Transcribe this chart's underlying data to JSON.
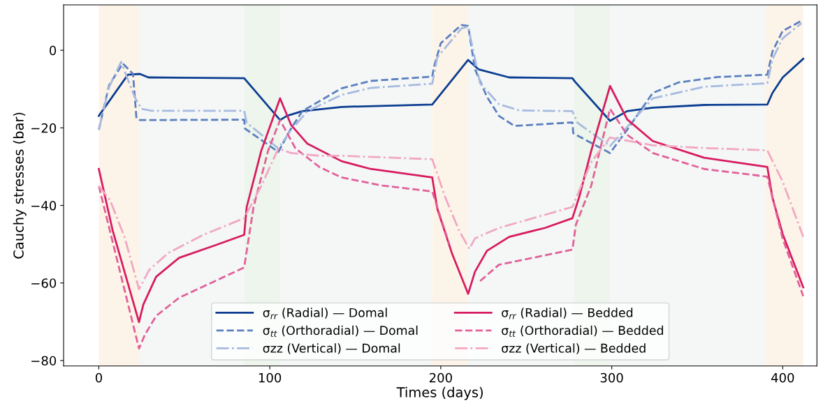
{
  "chart_data": {
    "type": "line",
    "xlabel": "Times (days)",
    "ylabel": "Cauchy stresses (bar)",
    "xlim": [
      -20.6,
      420
    ],
    "ylim": [
      -81.4,
      11.7
    ],
    "xticks": [
      0,
      100,
      200,
      300,
      400
    ],
    "yticks": [
      -80,
      -60,
      -40,
      -20,
      0
    ],
    "grid": false,
    "legend": "bottom",
    "marker": "none",
    "bands": [
      {
        "axis": "x",
        "from": 0,
        "to": 24,
        "color": "#fdf4e9"
      },
      {
        "axis": "x",
        "from": 24,
        "to": 85,
        "color": "#f4f7f6"
      },
      {
        "axis": "x",
        "from": 85,
        "to": 106,
        "color": "#edf5ec"
      },
      {
        "axis": "x",
        "from": 106,
        "to": 195,
        "color": "#f4f7f6"
      },
      {
        "axis": "x",
        "from": 195,
        "to": 216,
        "color": "#fdf4e9"
      },
      {
        "axis": "x",
        "from": 216,
        "to": 278,
        "color": "#f4f7f6"
      },
      {
        "axis": "x",
        "from": 278,
        "to": 299,
        "color": "#edf5ec"
      },
      {
        "axis": "x",
        "from": 299,
        "to": 390,
        "color": "#f4f7f6"
      },
      {
        "axis": "x",
        "from": 390,
        "to": 412,
        "color": "#fdf4e9"
      }
    ],
    "series": [
      {
        "name": "σ$_{rr}$ (Radial) — Domal",
        "color": "#0b3d91",
        "line_style": "solid",
        "x": [
          0,
          17,
          24,
          29,
          85,
          106,
          110,
          119,
          142,
          195,
          216,
          222,
          240,
          277,
          278.5,
          299,
          309,
          324,
          354,
          391,
          394,
          400,
          412
        ],
        "values": [
          -16.9,
          -6.3,
          -6.1,
          -7.0,
          -7.2,
          -18.0,
          -16.9,
          -15.7,
          -14.6,
          -14.0,
          -2.5,
          -4.9,
          -7.0,
          -7.2,
          -8.1,
          -18.2,
          -15.7,
          -14.8,
          -14.1,
          -14.0,
          -11.0,
          -7.0,
          -2.2
        ]
      },
      {
        "name": "σ$_{tt}$ (Orthoradial) — Domal",
        "color": "#5b7fbf",
        "line_style": "dashed",
        "x": [
          0,
          6,
          14,
          20,
          22,
          24,
          85,
          85.5,
          105,
          112,
          119,
          142,
          159,
          195,
          196,
          200,
          212,
          216,
          220,
          227,
          234,
          243,
          277,
          277.5,
          299,
          309,
          324,
          339,
          362,
          391,
          394,
          400,
          411
        ],
        "values": [
          -20.5,
          -9.0,
          -3.4,
          -6.1,
          -17.5,
          -18.0,
          -17.9,
          -20.2,
          -26.2,
          -20.5,
          -15.7,
          -9.8,
          -7.9,
          -6.8,
          -4.3,
          1.8,
          6.5,
          6.3,
          -4.9,
          -12.0,
          -16.9,
          -19.5,
          -18.6,
          -21.4,
          -26.5,
          -20.5,
          -11.0,
          -8.3,
          -6.9,
          -6.3,
          -0.3,
          5.0,
          7.6
        ]
      },
      {
        "name": "σzz (Vertical) — Domal",
        "color": "#a7badf",
        "line_style": "dashdot",
        "x": [
          0,
          6,
          13,
          21,
          25,
          31,
          85,
          86.5,
          105,
          112.5,
          122,
          142,
          159,
          195,
          198,
          212,
          216,
          223,
          234,
          246,
          277,
          280,
          299,
          309,
          324,
          354,
          391,
          394,
          400,
          411
        ],
        "values": [
          -20.5,
          -9.5,
          -3.0,
          -12.1,
          -15.1,
          -15.6,
          -15.6,
          -18.7,
          -25.3,
          -20.5,
          -15.7,
          -11.5,
          -9.7,
          -8.6,
          -1.8,
          5.6,
          6.1,
          -8.5,
          -13.9,
          -15.5,
          -15.7,
          -18.7,
          -24.7,
          -19.8,
          -12.4,
          -9.4,
          -8.5,
          -2.3,
          3.1,
          7.0
        ]
      },
      {
        "name": "σ$_{rr}$ (Radial) — Bedded",
        "color": "#d81b60",
        "line_style": "solid",
        "x": [
          0,
          8,
          23.5,
          26,
          33.5,
          47,
          68,
          85,
          86.5,
          95,
          106,
          112.5,
          122,
          142,
          159,
          195,
          198,
          206.5,
          216,
          220,
          227,
          240,
          261,
          277,
          281,
          288,
          299,
          309,
          324,
          354,
          391,
          394,
          400,
          412
        ],
        "values": [
          -30.6,
          -46.3,
          -70.1,
          -65.6,
          -58.4,
          -53.5,
          -50.3,
          -47.6,
          -40.4,
          -25.9,
          -12.4,
          -19.3,
          -24.1,
          -28.6,
          -30.6,
          -32.8,
          -40.9,
          -52.3,
          -62.8,
          -57.1,
          -51.7,
          -48.1,
          -45.8,
          -43.3,
          -37.8,
          -25.9,
          -9.2,
          -17.8,
          -23.4,
          -27.7,
          -30.1,
          -38.0,
          -47.4,
          -61.1
        ]
      },
      {
        "name": "σ$_{tt}$ (Orthoradial) — Bedded",
        "color": "#e2609a",
        "line_style": "dashed",
        "x": [
          0,
          23.5,
          27,
          33.5,
          47,
          68,
          85,
          90.5,
          99,
          106,
          115,
          129,
          142,
          166,
          195,
          205,
          216,
          223,
          234,
          254,
          277,
          279,
          288,
          299,
          309,
          324,
          354,
          391,
          400,
          412
        ],
        "values": [
          -35.0,
          -76.9,
          -73.3,
          -68.5,
          -63.8,
          -59.5,
          -56.0,
          -40.4,
          -25.9,
          -18.0,
          -25.3,
          -30.1,
          -32.8,
          -34.9,
          -36.4,
          -50.0,
          null,
          -59.5,
          -55.3,
          -53.5,
          -51.4,
          -45.0,
          -34.9,
          -15.1,
          -21.8,
          -26.5,
          -30.6,
          -32.6,
          -48.6,
          -63.4
        ]
      },
      {
        "name": "σzz (Vertical) — Bedded",
        "color": "#f2a7c3",
        "line_style": "dashdot",
        "x": [
          0,
          6.5,
          15,
          23.5,
          29.5,
          40.5,
          61,
          85,
          95,
          105,
          112.5,
          129,
          142,
          195,
          202.5,
          210.5,
          216.7,
          220,
          234,
          277,
          288,
          299,
          324,
          354,
          391,
          400,
          412
        ],
        "values": [
          -35.0,
          -38.6,
          -48.1,
          -61.6,
          -56.6,
          -52.3,
          -47.6,
          -43.3,
          -35.0,
          -25.3,
          -26.5,
          -27.2,
          -27.2,
          -28.1,
          -37.8,
          -46.3,
          -51.2,
          -48.5,
          -45.8,
          -40.4,
          -28.8,
          -22.5,
          -24.5,
          -25.2,
          -25.8,
          -33.9,
          -48.1
        ]
      }
    ]
  }
}
